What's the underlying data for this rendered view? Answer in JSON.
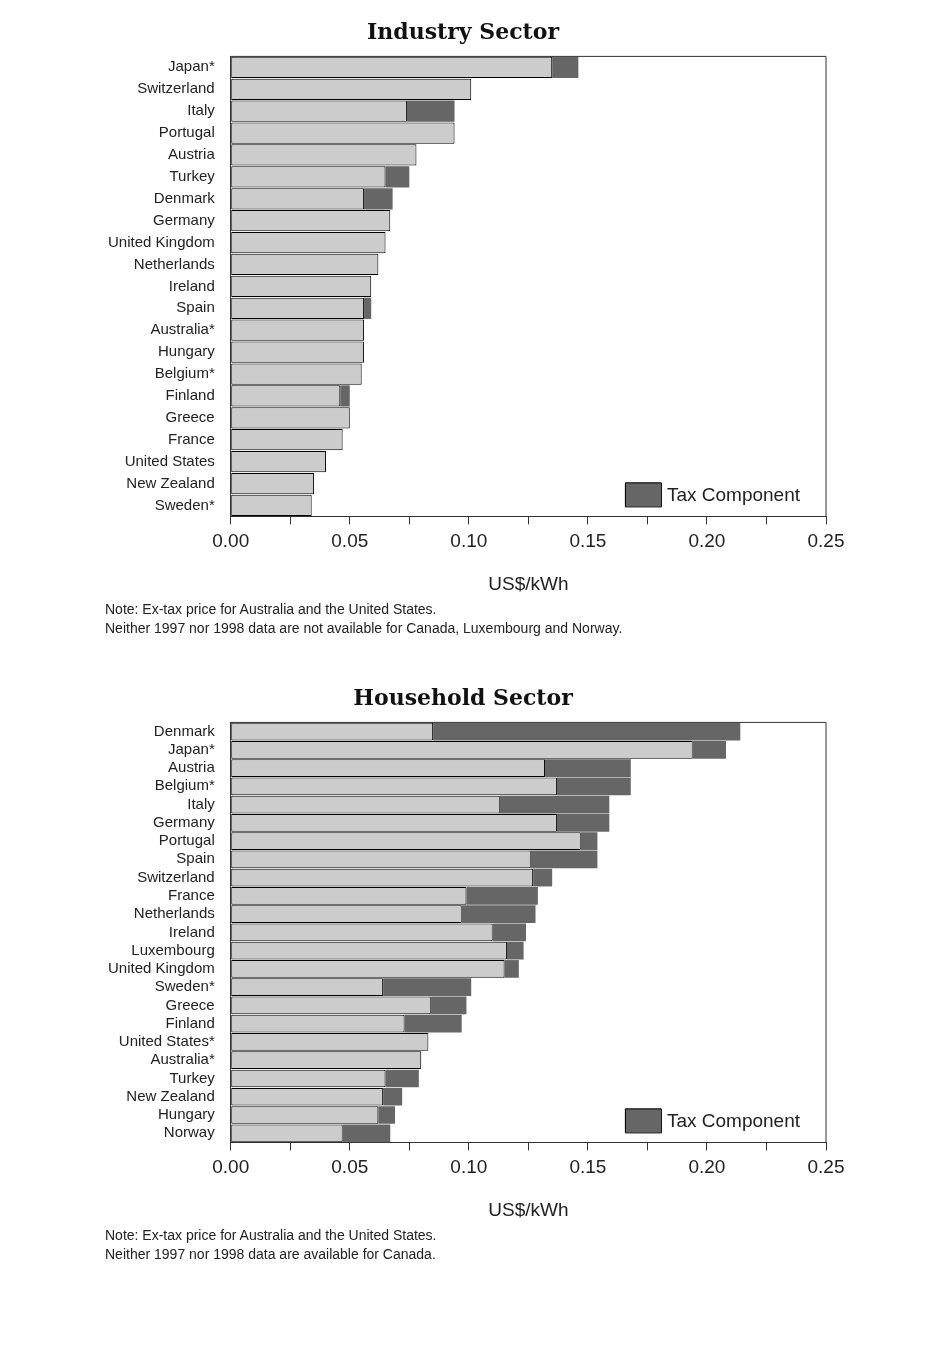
{
  "chart_data": [
    {
      "type": "bar",
      "title": "Industry Sector",
      "orientation": "horizontal",
      "stacked": true,
      "xlabel": "US$/kWh",
      "categories": [
        "Japan*",
        "Switzerland",
        "Italy",
        "Portugal",
        "Austria",
        "Turkey",
        "Denmark",
        "Germany",
        "United Kingdom",
        "Netherlands",
        "Ireland",
        "Spain",
        "Australia*",
        "Hungary",
        "Belgium*",
        "Finland",
        "Greece",
        "France",
        "United States",
        "New Zealand",
        "Sweden*"
      ],
      "series": [
        {
          "color": "#cccccc",
          "values": [
            0.135,
            0.101,
            0.074,
            0.094,
            0.078,
            0.065,
            0.056,
            0.067,
            0.065,
            0.062,
            0.059,
            0.056,
            0.056,
            0.056,
            0.055,
            0.046,
            0.05,
            0.047,
            0.04,
            0.035,
            0.034
          ]
        },
        {
          "name": "Tax Component",
          "color": "#666666",
          "values": [
            0.011,
            0,
            0.02,
            0,
            0,
            0.01,
            0.012,
            0,
            0,
            0,
            0,
            0.003,
            0,
            0,
            0,
            0.004,
            0,
            0,
            0,
            0,
            0
          ]
        }
      ],
      "xlim": [
        0,
        0.25
      ],
      "xticks": [
        {
          "value": 0,
          "label": "0.00"
        },
        {
          "value": 0.025,
          "label": null
        },
        {
          "value": 0.05,
          "label": "0.05"
        },
        {
          "value": 0.075,
          "label": null
        },
        {
          "value": 0.1,
          "label": "0.10"
        },
        {
          "value": 0.125,
          "label": null
        },
        {
          "value": 0.15,
          "label": "0.15"
        },
        {
          "value": 0.175,
          "label": null
        },
        {
          "value": 0.2,
          "label": "0.20"
        },
        {
          "value": 0.225,
          "label": null
        },
        {
          "value": 0.25,
          "label": "0.25"
        }
      ],
      "grid": false,
      "legend": "bottom right",
      "annotations": [
        "Note: Ex-tax price for Australia and the United States.",
        "Neither 1997 nor 1998 data are not available for Canada, Luxembourg and Norway."
      ]
    },
    {
      "type": "bar",
      "title": "Household Sector",
      "orientation": "horizontal",
      "stacked": true,
      "xlabel": "US$/kWh",
      "categories": [
        "Denmark",
        "Japan*",
        "Austria",
        "Belgium*",
        "Italy",
        "Germany",
        "Portugal",
        "Spain",
        "Switzerland",
        "France",
        "Netherlands",
        "Ireland",
        "Luxembourg",
        "United Kingdom",
        "Sweden*",
        "Greece",
        "Finland",
        "United States*",
        "Australia*",
        "Turkey",
        "New Zealand",
        "Hungary",
        "Norway"
      ],
      "series": [
        {
          "color": "#cccccc",
          "values": [
            0.085,
            0.194,
            0.132,
            0.137,
            0.113,
            0.137,
            0.147,
            0.126,
            0.127,
            0.099,
            0.097,
            0.11,
            0.116,
            0.115,
            0.064,
            0.084,
            0.073,
            0.083,
            0.08,
            0.065,
            0.064,
            0.062,
            0.047
          ]
        },
        {
          "name": "Tax Component",
          "color": "#666666",
          "values": [
            0.129,
            0.014,
            0.036,
            0.031,
            0.046,
            0.022,
            0.007,
            0.028,
            0.008,
            0.03,
            0.031,
            0.014,
            0.007,
            0.006,
            0.037,
            0.015,
            0.024,
            0,
            0,
            0.014,
            0.008,
            0.007,
            0.02
          ]
        }
      ],
      "xlim": [
        0,
        0.25
      ],
      "xticks": [
        {
          "value": 0,
          "label": "0.00"
        },
        {
          "value": 0.025,
          "label": null
        },
        {
          "value": 0.05,
          "label": "0.05"
        },
        {
          "value": 0.075,
          "label": null
        },
        {
          "value": 0.1,
          "label": "0.10"
        },
        {
          "value": 0.125,
          "label": null
        },
        {
          "value": 0.15,
          "label": "0.15"
        },
        {
          "value": 0.175,
          "label": null
        },
        {
          "value": 0.2,
          "label": "0.20"
        },
        {
          "value": 0.225,
          "label": null
        },
        {
          "value": 0.25,
          "label": "0.25"
        }
      ],
      "grid": false,
      "legend": "bottom right",
      "annotations": [
        "Note: Ex-tax price for Australia and the United States.",
        "Neither 1997 nor 1998 data are available for Canada."
      ]
    }
  ]
}
